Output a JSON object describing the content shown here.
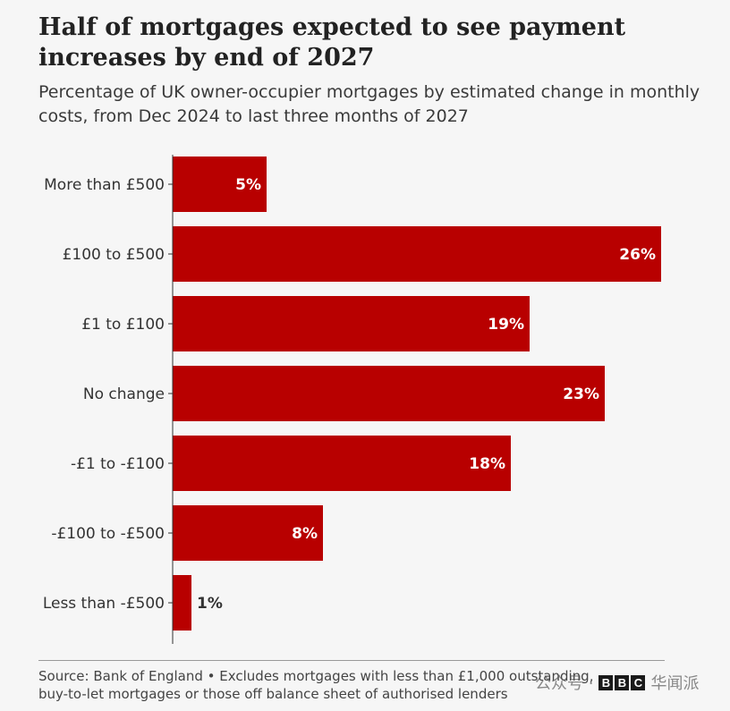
{
  "header": {
    "title": "Half of mortgages expected to see payment increases by end of 2027",
    "subtitle": "Percentage of UK owner-occupier mortgages by estimated change in monthly costs, from Dec 2024 to last three months of 2027"
  },
  "chart_data": {
    "type": "bar",
    "orientation": "horizontal",
    "categories": [
      "More than £500",
      "£100 to £500",
      "£1 to £100",
      "No change",
      "-£1 to -£100",
      "-£100 to -£500",
      "Less than -£500"
    ],
    "values": [
      5,
      26,
      19,
      23,
      18,
      8,
      1
    ],
    "value_labels": [
      "5%",
      "26%",
      "19%",
      "23%",
      "18%",
      "8%",
      "1%"
    ],
    "xlim": [
      0,
      26
    ],
    "grid": false,
    "bar_color": "#b80000"
  },
  "footer": {
    "source": "Source: Bank of England • Excludes mortgages with less than £1,000 outstanding, buy-to-let mortgages or those off balance sheet of authorised lenders"
  },
  "watermark": {
    "text_left": "公众号 ·",
    "brand_letters": [
      "B",
      "B",
      "C"
    ],
    "text_right": "华闻派"
  }
}
